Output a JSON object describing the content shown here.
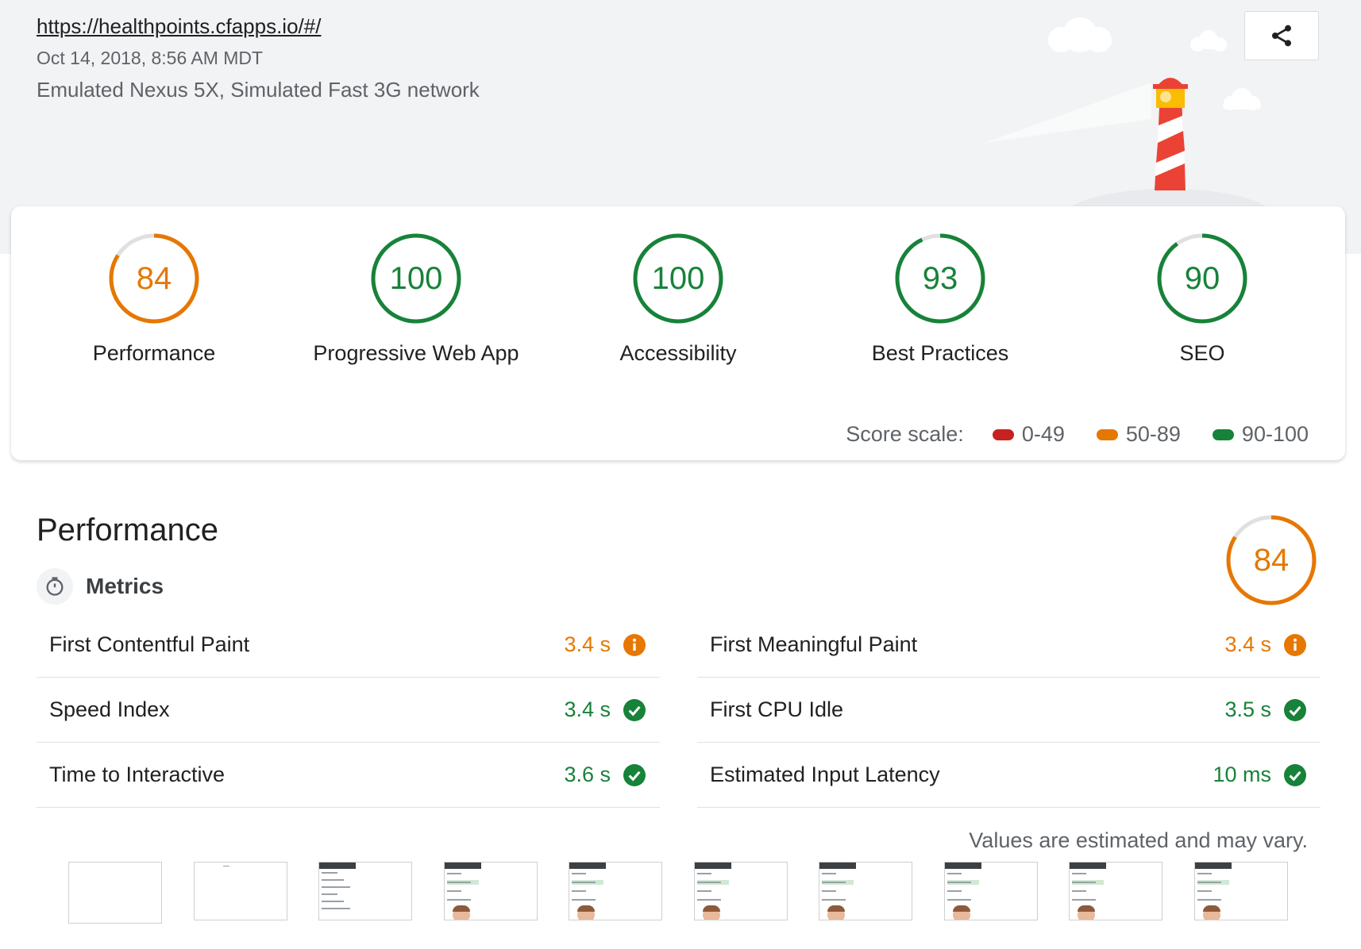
{
  "header": {
    "url": "https://healthpoints.cfapps.io/#/",
    "date": "Oct 14, 2018, 8:56 AM MDT",
    "device": "Emulated Nexus 5X, Simulated Fast 3G network",
    "share_icon": "share-icon"
  },
  "scores": [
    {
      "label": "Performance",
      "score": 84,
      "rating": "average"
    },
    {
      "label": "Progressive Web App",
      "score": 100,
      "rating": "pass"
    },
    {
      "label": "Accessibility",
      "score": 100,
      "rating": "pass"
    },
    {
      "label": "Best Practices",
      "score": 93,
      "rating": "pass"
    },
    {
      "label": "SEO",
      "score": 90,
      "rating": "pass"
    }
  ],
  "score_scale": {
    "label": "Score scale:",
    "ranges": [
      {
        "label": "0-49",
        "color": "#c7221f"
      },
      {
        "label": "50-89",
        "color": "#e67700"
      },
      {
        "label": "90-100",
        "color": "#178239"
      }
    ]
  },
  "colors": {
    "fail": "#c7221f",
    "average": "#e67700",
    "pass": "#178239",
    "track": "#e0e0e0"
  },
  "performance": {
    "title": "Performance",
    "score": 84,
    "metrics_label": "Metrics",
    "metrics_icon": "stopwatch-icon",
    "metrics_left": [
      {
        "name": "First Contentful Paint",
        "value": "3.4 s",
        "status": "average"
      },
      {
        "name": "Speed Index",
        "value": "3.4 s",
        "status": "pass"
      },
      {
        "name": "Time to Interactive",
        "value": "3.6 s",
        "status": "pass"
      }
    ],
    "metrics_right": [
      {
        "name": "First Meaningful Paint",
        "value": "3.4 s",
        "status": "average"
      },
      {
        "name": "First CPU Idle",
        "value": "3.5 s",
        "status": "pass"
      },
      {
        "name": "Estimated Input Latency",
        "value": "10 ms",
        "status": "pass"
      }
    ],
    "estimate_note": "Values are estimated and may vary."
  },
  "filmstrip": {
    "frames": [
      "blank",
      "blank",
      "partial",
      "app",
      "app",
      "app",
      "app",
      "app",
      "app",
      "app"
    ]
  }
}
